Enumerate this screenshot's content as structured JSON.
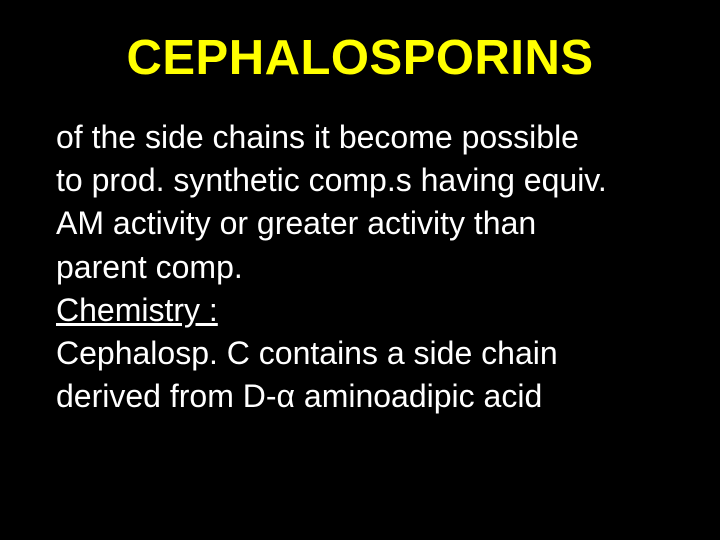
{
  "slide": {
    "title": "CEPHALOSPORINS",
    "paragraph1_line1": "of the side chains it become possible",
    "paragraph1_line2": "to prod. synthetic comp.s having equiv.",
    "paragraph1_line3": "AM activity  or greater activity than",
    "paragraph1_line4": "parent comp.",
    "subheading": "Chemistry :",
    "paragraph2_line1": " Cephalosp. C contains a side chain",
    "paragraph2_line2": " derived from D-α aminoadipic acid",
    "colors": {
      "background": "#000000",
      "title_color": "#ffff00",
      "body_color": "#ffffff"
    },
    "typography": {
      "title_fontsize": 49,
      "title_weight": "bold",
      "body_fontsize": 32,
      "font_family": "Arial"
    }
  }
}
